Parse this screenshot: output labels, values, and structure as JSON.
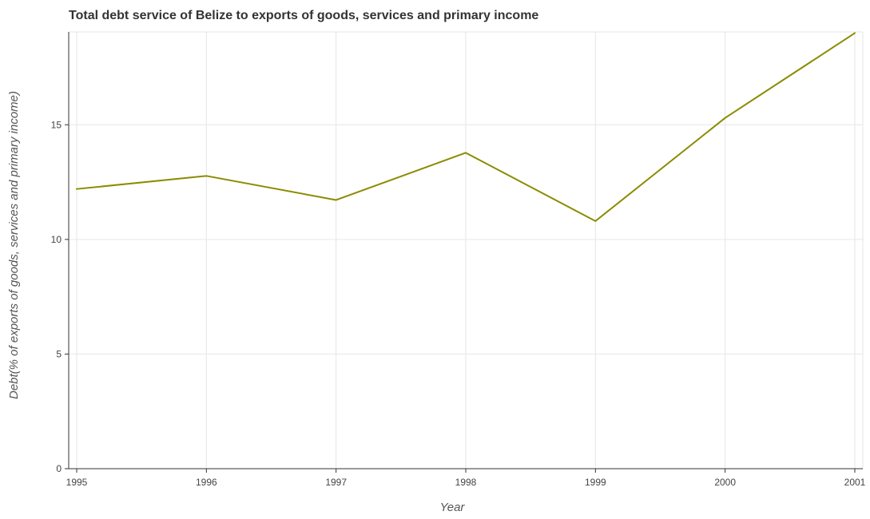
{
  "chart_data": {
    "type": "line",
    "title": "Total debt service of Belize to exports of goods, services and primary income",
    "xlabel": "Year",
    "ylabel": "Debt(% of exports of goods, services and primary income)",
    "categories": [
      "1995",
      "1996",
      "1997",
      "1998",
      "1999",
      "2000",
      "2001"
    ],
    "y_ticks": [
      0,
      5,
      10,
      15
    ],
    "y_tick_labels": [
      "0",
      "5",
      "10",
      "15"
    ],
    "ylim": [
      0,
      19.05
    ],
    "grid": true,
    "series": [
      {
        "values": [
          12.2,
          12.77,
          11.72,
          13.78,
          10.8,
          15.3,
          19.0
        ],
        "color": "#8b8b00"
      }
    ]
  }
}
